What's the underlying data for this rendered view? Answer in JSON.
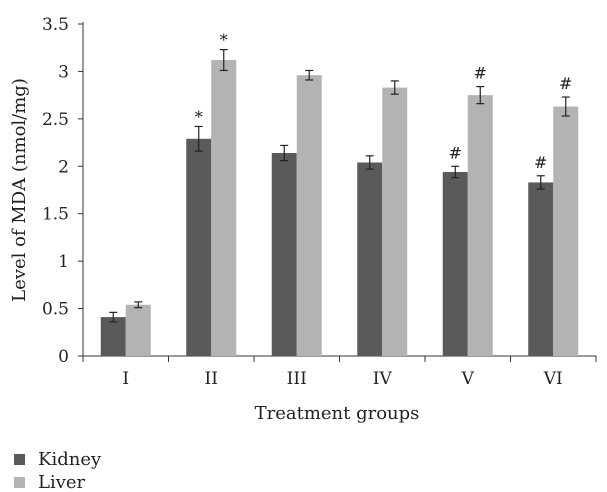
{
  "chart_data": {
    "type": "bar",
    "title": "",
    "xlabel": "Treatment groups",
    "ylabel": "Level of MDA (nmol/mg)",
    "ylim": [
      0,
      3.5
    ],
    "yticks": [
      0,
      0.5,
      1,
      1.5,
      2,
      2.5,
      3,
      3.5
    ],
    "ytick_labels": [
      "0",
      "0.5",
      "1",
      "1.5",
      "2",
      "2.5",
      "3",
      "3.5"
    ],
    "categories": [
      "I",
      "II",
      "III",
      "IV",
      "V",
      "VI"
    ],
    "grid": false,
    "legend_position": "bottom-left",
    "series": [
      {
        "name": "Kidney",
        "color": "#5a5a5a",
        "values": [
          0.41,
          2.29,
          2.14,
          2.04,
          1.94,
          1.83
        ],
        "errors": [
          0.05,
          0.13,
          0.08,
          0.07,
          0.06,
          0.07
        ],
        "annotations": [
          "",
          "*",
          "",
          "",
          "#",
          "#"
        ]
      },
      {
        "name": "Liver",
        "color": "#b3b3b3",
        "values": [
          0.54,
          3.12,
          2.96,
          2.83,
          2.75,
          2.63
        ],
        "errors": [
          0.03,
          0.11,
          0.05,
          0.07,
          0.09,
          0.1
        ],
        "annotations": [
          "",
          "*",
          "",
          "",
          "#",
          "#"
        ]
      }
    ]
  }
}
